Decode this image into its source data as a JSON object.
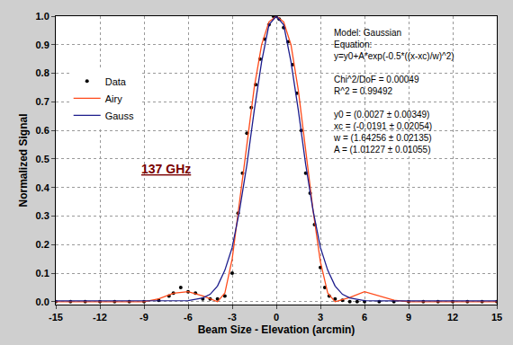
{
  "chart_data": {
    "type": "line",
    "x_label": "Beam Size - Elevation (arcmin)",
    "y_label": "Normalized Signal",
    "xlim": [
      -15,
      15
    ],
    "xticks": [
      -15,
      -12,
      -9,
      -6,
      -3,
      0,
      3,
      6,
      9,
      12,
      15
    ],
    "ylim": [
      -0.01,
      1.0
    ],
    "yticks": [
      {
        "value": 0,
        "label": "0.0"
      },
      {
        "value": 0.1,
        "label": "0.1"
      },
      {
        "value": 0.2,
        "label": "0.2"
      },
      {
        "value": 0.3,
        "label": "0.3"
      },
      {
        "value": 0.4,
        "label": "0.4"
      },
      {
        "value": 0.5,
        "label": "0.5"
      },
      {
        "value": 0.6,
        "label": "0.6"
      },
      {
        "value": 0.7,
        "label": "0.7"
      },
      {
        "value": 0.8,
        "label": "0.8"
      },
      {
        "value": 0.9,
        "label": "0.9"
      },
      {
        "value": 1.0,
        "label": "1.0"
      }
    ],
    "grid": true,
    "legend": "left",
    "annotations": [
      "137 GHz"
    ],
    "fit_text": [
      "Model: Gaussian",
      "Equation:",
      "y=y0+A*exp(-0.5*((x-xc)/w)^2)",
      "",
      "Chi^2/DoF = 0.00049",
      "R^2 = 0.99492",
      "",
      "y0 = (0.0027 ± 0.00349)",
      "xc = (-0.0191 ± 0.02054)",
      "w = (1.64256 ± 0.02135)",
      "A = (1.01227 ± 0.01055)"
    ],
    "series": [
      {
        "name": "Data",
        "type": "scatter",
        "marker": "circle",
        "color": "#000000",
        "x": [
          -15,
          -14,
          -13,
          -12,
          -11,
          -10,
          -9,
          -8,
          -7.3,
          -7,
          -6.5,
          -6,
          -5.5,
          -5,
          -4.5,
          -4,
          -3.5,
          -3,
          -2.6,
          -2.3,
          -2.0,
          -1.7,
          -1.4,
          -1.1,
          -0.8,
          -0.5,
          -0.2,
          0,
          0.2,
          0.5,
          0.8,
          1.1,
          1.4,
          1.7,
          2.0,
          2.3,
          2.6,
          3.0,
          3.3,
          3.6,
          4,
          4.5,
          5,
          5.5,
          6,
          7,
          8,
          9,
          10,
          11,
          12,
          13,
          14,
          15
        ],
        "values": [
          0,
          0,
          0,
          0,
          0,
          0,
          0,
          0.005,
          0.02,
          0.03,
          0.05,
          0.035,
          0.03,
          0.01,
          0.01,
          0.01,
          0.02,
          0.1,
          0.31,
          0.45,
          0.59,
          0.68,
          0.76,
          0.85,
          0.92,
          0.97,
          1.0,
          1.0,
          0.99,
          0.96,
          0.91,
          0.83,
          0.73,
          0.6,
          0.45,
          0.38,
          0.27,
          0.12,
          0.05,
          0.02,
          0.01,
          0.005,
          0,
          0,
          0,
          0,
          0,
          0,
          0,
          0,
          0,
          0,
          0,
          0
        ]
      },
      {
        "name": "Airy",
        "type": "line",
        "line_style": "solid",
        "color": "#ff4a1a",
        "x": [
          -15,
          -12,
          -9,
          -8,
          -7,
          -6,
          -5,
          -4,
          -3.5,
          -3,
          -2.5,
          -2,
          -1.5,
          -1,
          -0.5,
          0,
          0.5,
          1,
          1.5,
          2,
          2.5,
          3,
          3.5,
          4,
          5,
          6,
          7,
          8,
          9,
          12,
          15
        ],
        "values": [
          0,
          0,
          0,
          0.01,
          0.03,
          0.035,
          0.02,
          0,
          0.03,
          0.15,
          0.35,
          0.55,
          0.75,
          0.9,
          0.98,
          1.0,
          0.98,
          0.9,
          0.74,
          0.53,
          0.32,
          0.14,
          0.03,
          0,
          0.015,
          0.035,
          0.02,
          0.005,
          0,
          0,
          0
        ]
      },
      {
        "name": "Gauss",
        "type": "line",
        "line_style": "solid",
        "color": "#1c1c8c",
        "x": [
          -15,
          -12,
          -9,
          -7,
          -6,
          -5,
          -4.5,
          -4,
          -3.5,
          -3,
          -2.5,
          -2,
          -1.5,
          -1,
          -0.5,
          0,
          0.5,
          1,
          1.5,
          2,
          2.5,
          3,
          3.5,
          4,
          4.5,
          5,
          6,
          7,
          9,
          12,
          15
        ],
        "values": [
          0.003,
          0.003,
          0.003,
          0.003,
          0.004,
          0.013,
          0.026,
          0.055,
          0.11,
          0.19,
          0.32,
          0.48,
          0.67,
          0.84,
          0.97,
          1.0,
          0.97,
          0.84,
          0.67,
          0.48,
          0.32,
          0.19,
          0.11,
          0.055,
          0.026,
          0.013,
          0.004,
          0.003,
          0.003,
          0.003,
          0.003
        ]
      }
    ]
  }
}
